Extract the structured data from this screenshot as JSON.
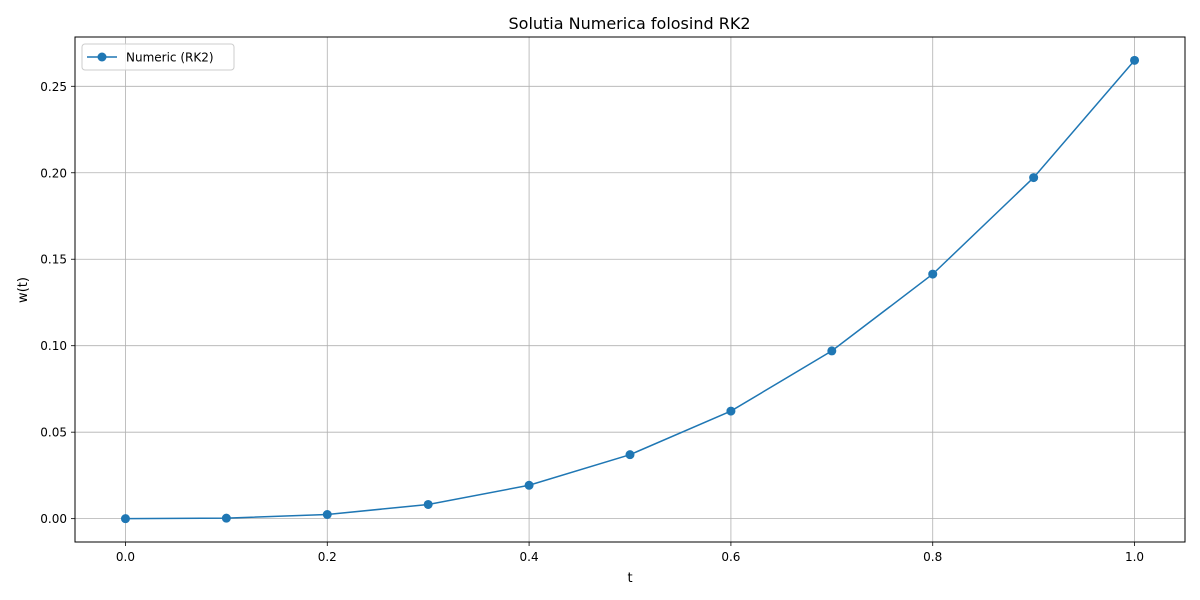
{
  "chart_data": {
    "type": "line",
    "title": "Solutia Numerica folosind RK2",
    "xlabel": "t",
    "ylabel": "w(t)",
    "xlim": [
      -0.05,
      1.05
    ],
    "ylim": [
      -0.0135,
      0.2785
    ],
    "x_ticks": [
      0.0,
      0.2,
      0.4,
      0.6,
      0.8,
      1.0
    ],
    "x_tick_labels": [
      "0.0",
      "0.2",
      "0.4",
      "0.6",
      "0.8",
      "1.0"
    ],
    "y_ticks": [
      0.0,
      0.05,
      0.1,
      0.15,
      0.2,
      0.25
    ],
    "y_tick_labels": [
      "0.00",
      "0.05",
      "0.10",
      "0.15",
      "0.20",
      "0.25"
    ],
    "grid": true,
    "legend_position": "top-left",
    "series": [
      {
        "name": "Numeric (RK2)",
        "color": "#1f77b4",
        "marker": "circle",
        "x": [
          0.0,
          0.1,
          0.2,
          0.3,
          0.4,
          0.5,
          0.6,
          0.7,
          0.8,
          0.9,
          1.0
        ],
        "y": [
          0.0,
          0.0003,
          0.0024,
          0.0082,
          0.0193,
          0.037,
          0.0622,
          0.097,
          0.1414,
          0.1972,
          0.265
        ]
      }
    ]
  }
}
